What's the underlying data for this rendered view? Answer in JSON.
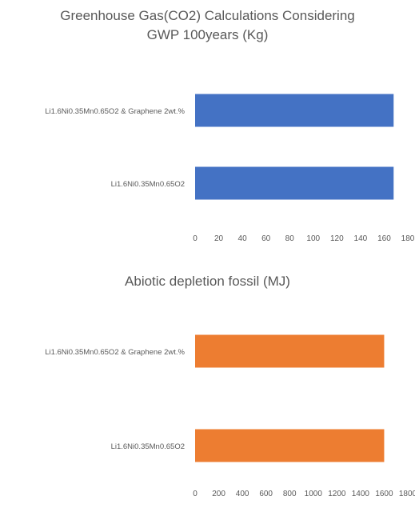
{
  "chart_data": [
    {
      "type": "bar",
      "orientation": "horizontal",
      "title": "Greenhouse Gas(CO2) Calculations Considering GWP 100years (Kg)",
      "title_lines": [
        "Greenhouse Gas(CO2) Calculations Considering",
        "GWP 100years (Kg)"
      ],
      "categories": [
        "Li1.6Ni0.35Mn0.65O2 & Graphene 2wt.%",
        "Li1.6Ni0.35Mn0.65O2"
      ],
      "values": [
        168,
        168
      ],
      "xlim": [
        0,
        180
      ],
      "xticks": [
        "0",
        "20",
        "40",
        "60",
        "80",
        "100",
        "120",
        "140",
        "160",
        "180"
      ],
      "bar_color": "#4472C4",
      "grid": false,
      "legend": "none"
    },
    {
      "type": "bar",
      "orientation": "horizontal",
      "title": "Abiotic depletion fossil (MJ)",
      "title_lines": [
        "Abiotic depletion fossil (MJ)"
      ],
      "categories": [
        "Li1.6Ni0.35Mn0.65O2 & Graphene 2wt.%",
        "Li1.6Ni0.35Mn0.65O2"
      ],
      "values": [
        1600,
        1600
      ],
      "xlim": [
        0,
        1800
      ],
      "xticks": [
        "0",
        "200",
        "400",
        "600",
        "800",
        "1000",
        "1200",
        "1400",
        "1600",
        "1800"
      ],
      "bar_color": "#ED7D31",
      "grid": false,
      "legend": "none"
    }
  ]
}
